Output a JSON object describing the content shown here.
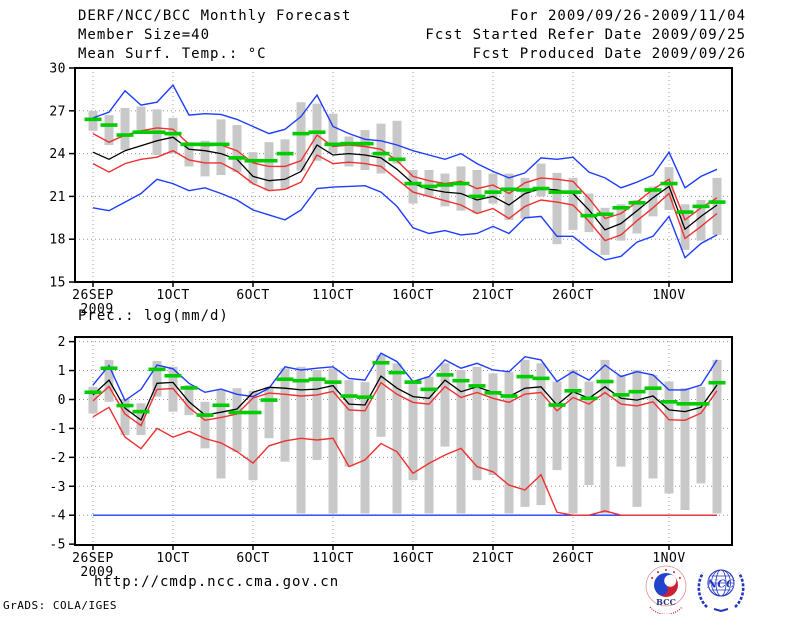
{
  "header": {
    "left1": "DERF/NCC/BCC Monthly Forecast",
    "left2": "Member Size=40",
    "right1": "For 2009/09/26-2009/11/04",
    "right2": "Fcst Started Refer Date 2009/09/25",
    "right3": "Fcst Produced Date 2009/09/26"
  },
  "footer": {
    "url": "http://cmdp.ncc.cma.gov.cn",
    "credit": "GrADS: COLA/IGES"
  },
  "logos": {
    "bcc_label": "BCC",
    "ncc_label": "NCC"
  },
  "colors": {
    "blue": "#1e3cff",
    "red": "#f03030",
    "green": "#00cc00",
    "black": "#000000",
    "bar_gray": "#c8c8c8",
    "grid_gray": "#999999"
  },
  "chart_data": [
    {
      "type": "line",
      "title": "Mean Surf. Temp.: °C",
      "ylim": [
        15,
        30
      ],
      "yticks": [
        30,
        27,
        24,
        21,
        18,
        15
      ],
      "grid": true,
      "legend": "none",
      "x_start_date": "2009/09/26",
      "x_end_date": "2009/11/04",
      "n_points": 40,
      "xticks": [
        {
          "day": 0,
          "label": "26SEP",
          "sub": "2009"
        },
        {
          "day": 5,
          "label": "1OCT"
        },
        {
          "day": 10,
          "label": "6OCT"
        },
        {
          "day": 15,
          "label": "11OCT"
        },
        {
          "day": 20,
          "label": "16OCT"
        },
        {
          "day": 25,
          "label": "21OCT"
        },
        {
          "day": 30,
          "label": "26OCT"
        },
        {
          "day": 36,
          "label": "1NOV"
        }
      ],
      "series": [
        {
          "name": "ensemble-max",
          "color": "#1e3cff",
          "width": 1.4,
          "values": [
            26.5,
            26.9,
            28.4,
            27.4,
            27.6,
            28.8,
            26.7,
            26.8,
            26.75,
            26.4,
            25.9,
            25.4,
            25.7,
            26.6,
            28.1,
            25.9,
            25.4,
            25.0,
            24.9,
            24.6,
            24.2,
            23.9,
            23.6,
            24.0,
            23.3,
            22.75,
            22.3,
            22.65,
            23.7,
            23.6,
            23.75,
            22.7,
            22.3,
            21.6,
            22.0,
            22.5,
            24.1,
            21.6,
            22.4,
            22.9
          ]
        },
        {
          "name": "ensemble-min",
          "color": "#1e3cff",
          "width": 1.4,
          "values": [
            20.2,
            20.0,
            20.6,
            21.2,
            22.2,
            21.9,
            21.4,
            21.6,
            21.2,
            20.75,
            20.05,
            19.7,
            19.35,
            20.05,
            21.55,
            21.65,
            21.7,
            21.75,
            21.3,
            20.3,
            18.8,
            18.4,
            18.6,
            18.3,
            18.4,
            18.9,
            18.4,
            19.5,
            19.6,
            18.2,
            18.2,
            17.3,
            16.55,
            16.8,
            17.8,
            18.2,
            19.6,
            16.7,
            17.7,
            18.3
          ]
        },
        {
          "name": "lower-bound",
          "color": "#f03030",
          "width": 1.4,
          "values": [
            23.3,
            22.7,
            23.3,
            23.6,
            23.75,
            24.2,
            23.55,
            23.35,
            23.35,
            22.75,
            21.9,
            21.4,
            21.5,
            22.0,
            23.9,
            23.3,
            23.4,
            23.3,
            23.1,
            22.2,
            21.3,
            21.0,
            20.7,
            20.4,
            19.8,
            20.15,
            19.45,
            20.3,
            20.75,
            20.6,
            20.4,
            19.25,
            17.9,
            18.3,
            19.3,
            20.2,
            21.2,
            18.05,
            18.9,
            19.8
          ]
        },
        {
          "name": "upper-bound",
          "color": "#f03030",
          "width": 1.4,
          "values": [
            25.4,
            24.8,
            25.3,
            25.6,
            25.8,
            25.7,
            24.65,
            24.55,
            24.6,
            24.2,
            23.35,
            23.1,
            23.1,
            23.5,
            25.3,
            24.5,
            24.6,
            24.5,
            24.3,
            23.5,
            22.4,
            22.1,
            21.9,
            22.05,
            21.55,
            21.8,
            21.2,
            21.95,
            22.3,
            22.2,
            22.05,
            20.85,
            19.45,
            19.8,
            20.6,
            21.5,
            22.2,
            19.35,
            20.2,
            20.9
          ]
        },
        {
          "name": "ensemble-mean",
          "color": "#000000",
          "width": 1.3,
          "values": [
            24.1,
            23.6,
            24.2,
            24.55,
            24.9,
            25.15,
            24.3,
            24.2,
            24.0,
            23.6,
            22.4,
            22.1,
            22.2,
            22.75,
            24.6,
            23.9,
            24.0,
            23.9,
            23.7,
            22.9,
            21.9,
            21.5,
            21.3,
            21.2,
            20.75,
            21.0,
            20.4,
            21.2,
            21.55,
            21.45,
            21.2,
            20.05,
            18.65,
            19.1,
            20.0,
            20.9,
            21.7,
            18.7,
            19.6,
            20.4
          ]
        }
      ],
      "dashes": {
        "name": "observation",
        "color": "#00cc00",
        "values": [
          26.4,
          26.0,
          25.3,
          25.5,
          25.5,
          25.4,
          24.65,
          24.65,
          24.65,
          23.7,
          23.5,
          23.5,
          24.0,
          25.4,
          25.5,
          24.65,
          24.7,
          24.7,
          24.0,
          23.6,
          21.9,
          21.7,
          21.8,
          21.9,
          21.0,
          21.3,
          21.5,
          21.45,
          21.55,
          21.3,
          21.3,
          19.65,
          19.75,
          20.2,
          20.55,
          21.45,
          21.9,
          19.9,
          20.3,
          20.6
        ]
      },
      "bars": {
        "name": "member-spread",
        "color": "#c8c8c8",
        "low": [
          25.6,
          24.6,
          24.25,
          25.4,
          23.9,
          24.0,
          23.1,
          22.4,
          22.5,
          22.7,
          21.9,
          21.4,
          21.5,
          22.8,
          23.5,
          24.0,
          23.1,
          22.85,
          22.6,
          23.3,
          20.5,
          21.0,
          20.3,
          20.0,
          19.8,
          20.5,
          19.35,
          19.45,
          21.0,
          17.65,
          18.65,
          18.5,
          16.9,
          17.9,
          18.4,
          19.6,
          20.05,
          17.25,
          17.9,
          18.3
        ],
        "high": [
          27.0,
          26.7,
          27.2,
          27.3,
          27.1,
          26.5,
          24.8,
          24.9,
          26.4,
          26.0,
          24.1,
          24.8,
          25.0,
          27.6,
          27.5,
          26.8,
          25.2,
          25.65,
          26.1,
          26.3,
          22.85,
          22.85,
          22.6,
          23.1,
          22.85,
          22.6,
          22.6,
          22.3,
          23.3,
          22.65,
          22.3,
          21.2,
          20.2,
          20.45,
          20.75,
          21.7,
          23.05,
          20.45,
          20.75,
          22.3
        ]
      }
    },
    {
      "type": "line",
      "title": "Prec.: log(mm/d)",
      "ylim": [
        -5,
        2
      ],
      "yticks": [
        2,
        1,
        0,
        -1,
        -2,
        -3,
        -4,
        -5
      ],
      "grid": true,
      "legend": "none",
      "x_start_date": "2009/09/26",
      "x_end_date": "2009/11/04",
      "n_points": 40,
      "xticks": [
        {
          "day": 0,
          "label": "26SEP",
          "sub": "2009"
        },
        {
          "day": 5,
          "label": "1OCT"
        },
        {
          "day": 10,
          "label": "6OCT"
        },
        {
          "day": 15,
          "label": "11OCT"
        },
        {
          "day": 20,
          "label": "16OCT"
        },
        {
          "day": 25,
          "label": "21OCT"
        },
        {
          "day": 30,
          "label": "26OCT"
        },
        {
          "day": 36,
          "label": "1NOV"
        }
      ],
      "series": [
        {
          "name": "ensemble-max",
          "color": "#1e3cff",
          "width": 1.4,
          "values": [
            0.5,
            1.17,
            -0.04,
            0.35,
            1.19,
            1.06,
            0.56,
            0.25,
            0.36,
            0.18,
            0.1,
            0.39,
            1.13,
            1.02,
            1.08,
            1.13,
            0.73,
            0.67,
            1.6,
            1.31,
            0.62,
            0.79,
            1.37,
            1.08,
            1.25,
            1.02,
            0.96,
            1.48,
            1.37,
            0.62,
            0.96,
            0.67,
            1.19,
            0.79,
            0.96,
            0.85,
            0.33,
            0.33,
            0.5,
            1.37
          ]
        },
        {
          "name": "ensemble-min",
          "color": "#1e3cff",
          "width": 1.4,
          "values": [
            -4,
            -4,
            -4,
            -4,
            -4,
            -4,
            -4,
            -4,
            -4,
            -4,
            -4,
            -4,
            -4,
            -4,
            -4,
            -4,
            -4,
            -4,
            -4,
            -4,
            -4,
            -4,
            -4,
            -4,
            -4,
            -4,
            -4,
            -4,
            -4,
            -4,
            -4,
            -4,
            -4,
            -4,
            -4,
            -4,
            -4,
            -4,
            -4,
            -4
          ]
        },
        {
          "name": "lower-bound",
          "color": "#f03030",
          "width": 1.4,
          "values": [
            -0.6,
            -0.27,
            -1.3,
            -1.7,
            -1.0,
            -1.3,
            -1.1,
            -1.35,
            -1.5,
            -1.8,
            -2.2,
            -1.6,
            -1.43,
            -1.34,
            -1.4,
            -1.34,
            -2.32,
            -2.09,
            -1.52,
            -1.81,
            -2.55,
            -2.21,
            -1.92,
            -1.69,
            -2.32,
            -2.5,
            -2.96,
            -3.13,
            -2.6,
            -3.9,
            -4.0,
            -4.0,
            -3.85,
            -4.0,
            -4.0,
            -4.0,
            -4.0,
            -4.0,
            -4.0,
            -4.0
          ]
        },
        {
          "name": "upper-bound",
          "color": "#f03030",
          "width": 1.4,
          "values": [
            -0.05,
            0.45,
            -0.5,
            -0.9,
            0.35,
            0.38,
            -0.28,
            -0.72,
            -0.62,
            -0.5,
            0.05,
            0.22,
            0.18,
            0.12,
            0.16,
            0.28,
            -0.36,
            -0.39,
            0.58,
            0.18,
            -0.1,
            -0.16,
            0.45,
            0.07,
            0.24,
            0.04,
            -0.1,
            0.19,
            0.24,
            -0.39,
            0.07,
            -0.16,
            0.24,
            -0.16,
            -0.22,
            -0.08,
            -0.7,
            -0.72,
            -0.47,
            0.3
          ]
        },
        {
          "name": "ensemble-mean",
          "color": "#000000",
          "width": 1.3,
          "values": [
            0.16,
            0.67,
            -0.3,
            -0.71,
            0.56,
            0.59,
            -0.08,
            -0.54,
            -0.44,
            -0.33,
            0.25,
            0.42,
            0.39,
            0.33,
            0.36,
            0.48,
            -0.16,
            -0.19,
            0.81,
            0.39,
            0.1,
            0.04,
            0.67,
            0.27,
            0.44,
            0.24,
            0.1,
            0.39,
            0.44,
            -0.19,
            0.27,
            0.04,
            0.44,
            0.04,
            -0.02,
            0.12,
            -0.36,
            -0.42,
            -0.27,
            0.5
          ]
        }
      ],
      "dashes": {
        "name": "observation",
        "color": "#00cc00",
        "values": [
          0.25,
          1.08,
          -0.21,
          -0.42,
          1.04,
          0.82,
          0.4,
          -0.54,
          -0.2,
          -0.45,
          -0.45,
          -0.02,
          0.7,
          0.65,
          0.7,
          0.6,
          0.12,
          0.08,
          1.27,
          0.93,
          0.6,
          0.35,
          0.85,
          0.65,
          0.47,
          0.23,
          0.12,
          0.79,
          0.73,
          -0.19,
          0.3,
          0.04,
          0.62,
          0.16,
          0.27,
          0.39,
          -0.08,
          -0.15,
          -0.15,
          0.58
        ]
      },
      "bars": {
        "name": "member-spread",
        "color": "#c8c8c8",
        "low": [
          -0.48,
          -0.08,
          -1.23,
          -1.23,
          0.1,
          -0.42,
          -0.54,
          -1.69,
          -2.73,
          -1.81,
          -2.79,
          -1.34,
          -2.15,
          -3.94,
          -2.09,
          -3.94,
          -2.32,
          -3.94,
          -1.29,
          -3.94,
          -2.79,
          -3.94,
          -1.63,
          -3.94,
          -2.79,
          -2.61,
          -3.94,
          -3.71,
          -3.65,
          -2.44,
          -3.94,
          -2.96,
          -3.94,
          -2.32,
          -3.71,
          -2.73,
          -3.25,
          -3.82,
          -2.9,
          -3.94
        ],
        "high": [
          0.44,
          1.37,
          0.02,
          -0.13,
          1.33,
          1.13,
          0.5,
          -0.08,
          0.33,
          0.39,
          0.3,
          0.44,
          1.08,
          1.13,
          1.02,
          1.08,
          0.67,
          0.6,
          1.54,
          1.25,
          0.56,
          0.79,
          1.25,
          1.02,
          1.13,
          0.9,
          0.96,
          1.37,
          1.25,
          0.62,
          1.02,
          0.62,
          1.37,
          0.85,
          1.02,
          0.85,
          0.62,
          0.39,
          0.44,
          1.37
        ]
      }
    }
  ]
}
